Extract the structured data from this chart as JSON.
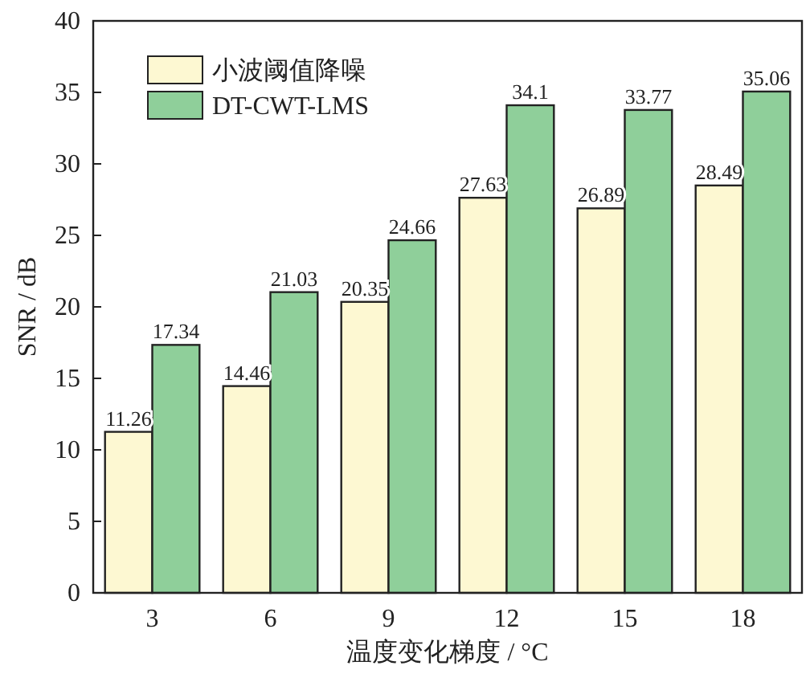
{
  "chart_data": {
    "type": "bar",
    "xlabel": "温度变化梯度 / °C",
    "ylabel": "SNR / dB",
    "categories": [
      "3",
      "6",
      "9",
      "12",
      "15",
      "18"
    ],
    "series": [
      {
        "name": "小波阈值降噪",
        "color": "#fdf8d2",
        "values": [
          11.26,
          14.46,
          20.35,
          27.63,
          26.89,
          28.49
        ]
      },
      {
        "name": "DT-CWT-LMS",
        "color": "#8fcf9a",
        "values": [
          17.34,
          21.03,
          24.66,
          34.1,
          33.77,
          35.06
        ]
      }
    ],
    "ylim": [
      0,
      40
    ],
    "yticks": [
      0,
      5,
      10,
      15,
      20,
      25,
      30,
      35,
      40
    ],
    "data_labels": true,
    "legend": "top left"
  }
}
